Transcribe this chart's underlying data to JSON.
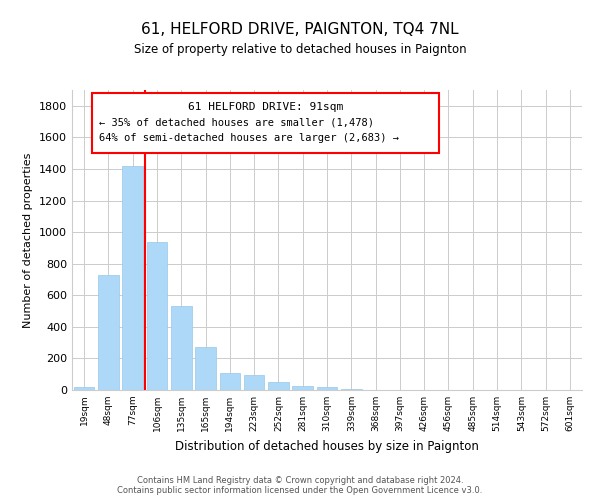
{
  "title": "61, HELFORD DRIVE, PAIGNTON, TQ4 7NL",
  "subtitle": "Size of property relative to detached houses in Paignton",
  "xlabel": "Distribution of detached houses by size in Paignton",
  "ylabel": "Number of detached properties",
  "bar_labels": [
    "19sqm",
    "48sqm",
    "77sqm",
    "106sqm",
    "135sqm",
    "165sqm",
    "194sqm",
    "223sqm",
    "252sqm",
    "281sqm",
    "310sqm",
    "339sqm",
    "368sqm",
    "397sqm",
    "426sqm",
    "456sqm",
    "485sqm",
    "514sqm",
    "543sqm",
    "572sqm",
    "601sqm"
  ],
  "bar_values": [
    20,
    730,
    1420,
    935,
    530,
    270,
    105,
    92,
    50,
    28,
    18,
    5,
    2,
    1,
    0,
    0,
    0,
    0,
    0,
    0,
    0
  ],
  "bar_color": "#add8f7",
  "bar_edge_color": "#9ac8e8",
  "redline_index": 2.5,
  "ylim": [
    0,
    1900
  ],
  "yticks": [
    0,
    200,
    400,
    600,
    800,
    1000,
    1200,
    1400,
    1600,
    1800
  ],
  "annotation_title": "61 HELFORD DRIVE: 91sqm",
  "annotation_line1": "← 35% of detached houses are smaller (1,478)",
  "annotation_line2": "64% of semi-detached houses are larger (2,683) →",
  "footer_line1": "Contains HM Land Registry data © Crown copyright and database right 2024.",
  "footer_line2": "Contains public sector information licensed under the Open Government Licence v3.0.",
  "bg_color": "#ffffff",
  "grid_color": "#cccccc"
}
